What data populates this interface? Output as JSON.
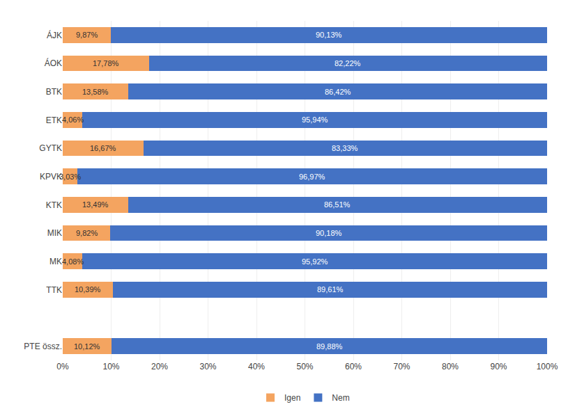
{
  "chart_data": {
    "type": "bar",
    "orientation": "horizontal",
    "stacked": true,
    "data_labels": true,
    "grid": true,
    "legend": "bottom",
    "categories": [
      "ÁJK",
      "ÁOK",
      "BTK",
      "ETK",
      "GYTK",
      "KPVK",
      "KTK",
      "MIK",
      "MK",
      "TTK",
      null,
      "PTE össz."
    ],
    "series": [
      {
        "name": "Igen",
        "color": "#F4A460",
        "values": [
          9.87,
          17.78,
          13.58,
          4.06,
          16.67,
          3.03,
          13.49,
          9.82,
          4.08,
          10.39,
          null,
          10.12
        ],
        "value_labels": [
          "9,87%",
          "17,78%",
          "13,58%",
          "4,06%",
          "16,67%",
          "3,03%",
          "13,49%",
          "9,82%",
          "4,08%",
          "10,39%",
          null,
          "10,12%"
        ]
      },
      {
        "name": "Nem",
        "color": "#4472C4",
        "values": [
          90.13,
          82.22,
          86.42,
          95.94,
          83.33,
          96.97,
          86.51,
          90.18,
          95.92,
          89.61,
          null,
          89.88
        ],
        "value_labels": [
          "90,13%",
          "82,22%",
          "86,42%",
          "95,94%",
          "83,33%",
          "96,97%",
          "86,51%",
          "90,18%",
          "95,92%",
          "89,61%",
          null,
          "89,88%"
        ]
      }
    ],
    "xlim": [
      0,
      100
    ],
    "xticks": [
      {
        "value": 0,
        "label": "0%"
      },
      {
        "value": 10,
        "label": "10%"
      },
      {
        "value": 20,
        "label": "20%"
      },
      {
        "value": 30,
        "label": "30%"
      },
      {
        "value": 40,
        "label": "40%"
      },
      {
        "value": 50,
        "label": "50%"
      },
      {
        "value": 60,
        "label": "60%"
      },
      {
        "value": 70,
        "label": "70%"
      },
      {
        "value": 80,
        "label": "80%"
      },
      {
        "value": 90,
        "label": "90%"
      },
      {
        "value": 100,
        "label": "100%"
      }
    ]
  }
}
